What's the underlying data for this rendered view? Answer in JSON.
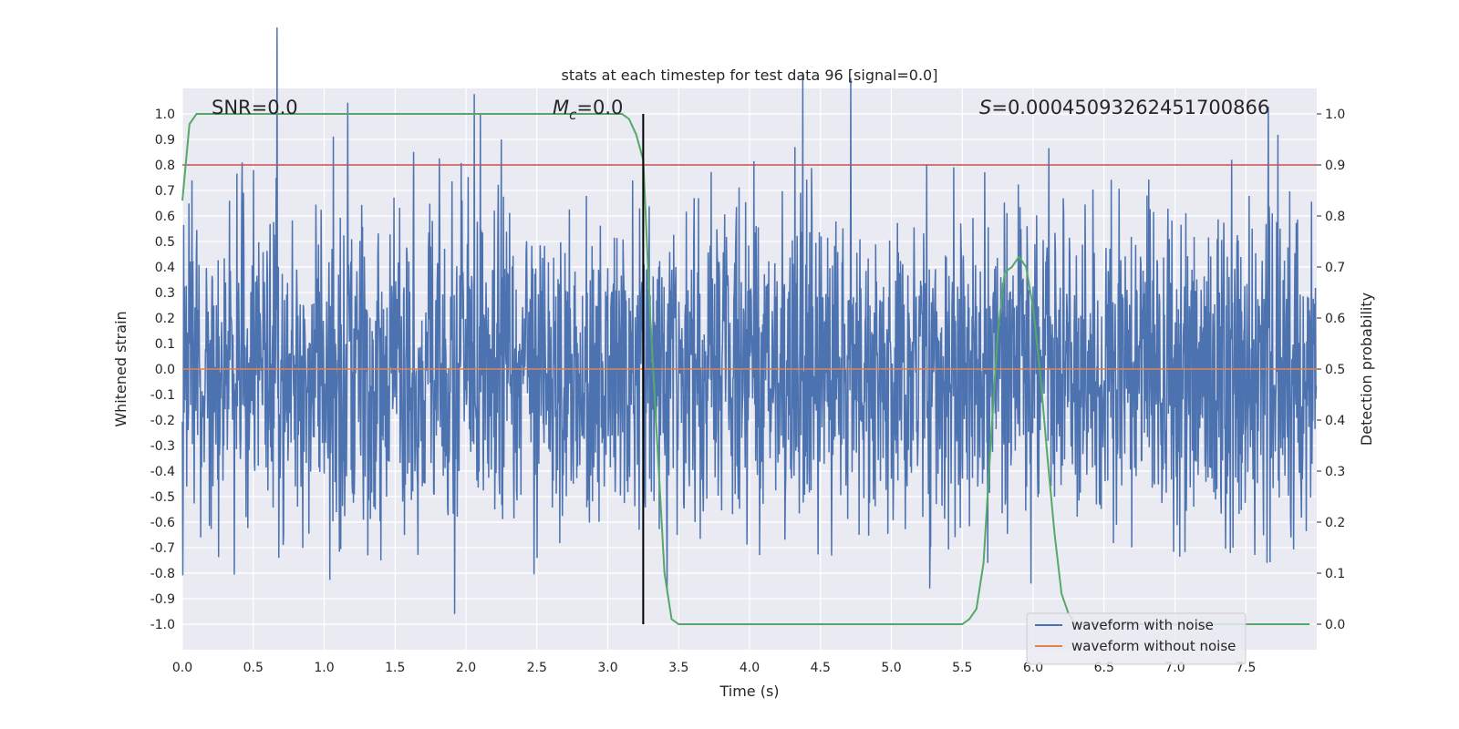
{
  "chart_data": {
    "type": "line",
    "title": "stats at each timestep for test data 96 [signal=0.0]",
    "xlabel": "Time (s)",
    "ylabel": "Whitened strain",
    "ylabel_right": "Detection probability",
    "xlim": [
      0.0,
      8.0
    ],
    "ylim": [
      -1.1,
      1.1
    ],
    "ylim_right": [
      -0.05,
      1.05
    ],
    "x_ticks": [
      "0.0",
      "0.5",
      "1.0",
      "1.5",
      "2.0",
      "2.5",
      "3.0",
      "3.5",
      "4.0",
      "4.5",
      "5.0",
      "5.5",
      "6.0",
      "6.5",
      "7.0",
      "7.5"
    ],
    "y_ticks": [
      "1.0",
      "0.9",
      "0.8",
      "0.7",
      "0.6",
      "0.5",
      "0.4",
      "0.3",
      "0.2",
      "0.1",
      "0.0",
      "-0.1",
      "-0.2",
      "-0.3",
      "-0.4",
      "-0.5",
      "-0.6",
      "-0.7",
      "-0.8",
      "-0.9",
      "-1.0"
    ],
    "y_ticks_right": [
      "1.0",
      "0.9",
      "0.8",
      "0.7",
      "0.6",
      "0.5",
      "0.4",
      "0.3",
      "0.2",
      "0.1",
      "0.0"
    ],
    "annotations": {
      "snr": "SNR=0.0",
      "mc_symbol": "M",
      "mc_sub": "c",
      "mc_value": "=0.0",
      "s_symbol": "S",
      "s_value": "=0.00045093262451700866"
    },
    "threshold_line": {
      "y_right": 0.9,
      "color": "#c44e52"
    },
    "vertical_line": {
      "x": 3.25,
      "color": "#000000"
    },
    "series": [
      {
        "name": "waveform with noise",
        "color": "#4c72b0",
        "envelope": "noise between approx -0.6 and 0.6 with spikes",
        "spikes": [
          [
            0.42,
            0.81
          ],
          [
            2.1,
            1.0
          ],
          [
            2.25,
            0.9
          ],
          [
            2.5,
            0.83
          ],
          [
            4.32,
            0.87
          ],
          [
            5.25,
            0.8
          ],
          [
            7.4,
            0.82
          ],
          [
            1.92,
            -0.96
          ],
          [
            1.4,
            -0.75
          ],
          [
            0.68,
            -0.74
          ],
          [
            2.5,
            -0.74
          ],
          [
            5.27,
            -0.86
          ],
          [
            5.68,
            -0.76
          ],
          [
            7.65,
            -0.76
          ],
          [
            3.22,
            -0.63
          ]
        ]
      },
      {
        "name": "waveform without noise",
        "color": "#dd8452",
        "x": [
          0.0,
          8.0
        ],
        "y": [
          0.0,
          0.0
        ]
      },
      {
        "name": "detection probability",
        "color": "#55a868",
        "axis": "right",
        "x": [
          0.0,
          0.05,
          0.1,
          0.15,
          0.5,
          1.0,
          2.0,
          3.0,
          3.1,
          3.15,
          3.2,
          3.25,
          3.3,
          3.35,
          3.4,
          3.45,
          3.5,
          4.0,
          5.0,
          5.5,
          5.55,
          5.6,
          5.65,
          5.7,
          5.75,
          5.8,
          5.85,
          5.9,
          5.95,
          6.0,
          6.05,
          6.1,
          6.15,
          6.2,
          6.25,
          6.3,
          7.95
        ],
        "y": [
          0.83,
          0.98,
          1.0,
          1.0,
          1.0,
          1.0,
          1.0,
          1.0,
          1.0,
          0.99,
          0.96,
          0.91,
          0.6,
          0.35,
          0.1,
          0.01,
          0.0,
          0.0,
          0.0,
          0.0,
          0.01,
          0.03,
          0.12,
          0.35,
          0.57,
          0.69,
          0.7,
          0.72,
          0.7,
          0.62,
          0.49,
          0.33,
          0.18,
          0.06,
          0.02,
          0.0,
          0.0
        ]
      }
    ],
    "legend": {
      "position": "lower-right",
      "entries": [
        {
          "label": "waveform with noise",
          "color": "#4c72b0"
        },
        {
          "label": "waveform without noise",
          "color": "#dd8452"
        }
      ]
    },
    "colors": {
      "background": "#eaeaf2",
      "grid": "#ffffff",
      "text": "#262626"
    }
  }
}
